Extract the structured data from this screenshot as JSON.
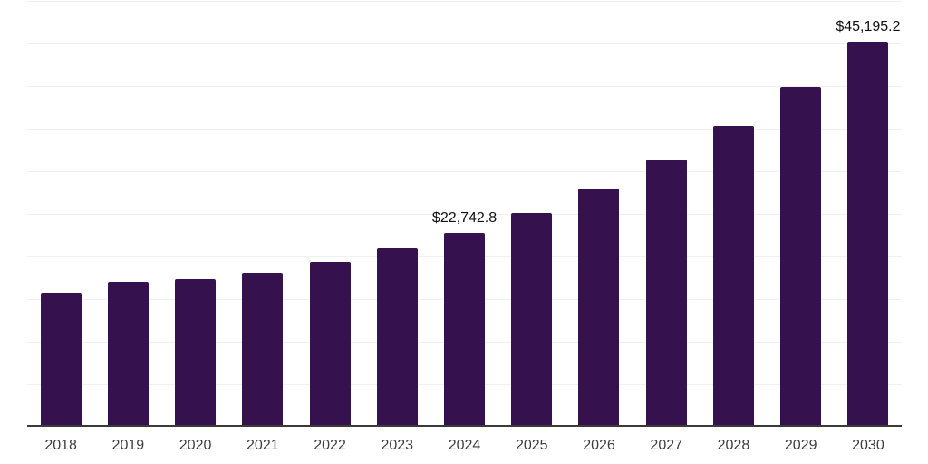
{
  "chart_data": {
    "type": "bar",
    "title": "",
    "xlabel": "",
    "ylabel": "",
    "categories": [
      "2018",
      "2019",
      "2020",
      "2021",
      "2022",
      "2023",
      "2024",
      "2025",
      "2026",
      "2027",
      "2028",
      "2029",
      "2030"
    ],
    "values": [
      15700,
      17000,
      17350,
      18100,
      19350,
      20950,
      22742.8,
      25100,
      28000,
      31400,
      35300,
      39900,
      45195.2
    ],
    "data_labels": {
      "2024": "$22,742.8",
      "2030": "$45,195.2"
    },
    "ylim": [
      0,
      50000
    ],
    "grid_step": 5000,
    "gridlines": "horizontal",
    "legend_position": "none"
  },
  "style": {
    "background": "#ffffff",
    "bar_color": "#35124E",
    "gridline_color": "#f0f0f0",
    "axis_line_color": "#3a3a3a",
    "tick_label_color": "#3d3d3d",
    "data_label_color": "#111111"
  }
}
